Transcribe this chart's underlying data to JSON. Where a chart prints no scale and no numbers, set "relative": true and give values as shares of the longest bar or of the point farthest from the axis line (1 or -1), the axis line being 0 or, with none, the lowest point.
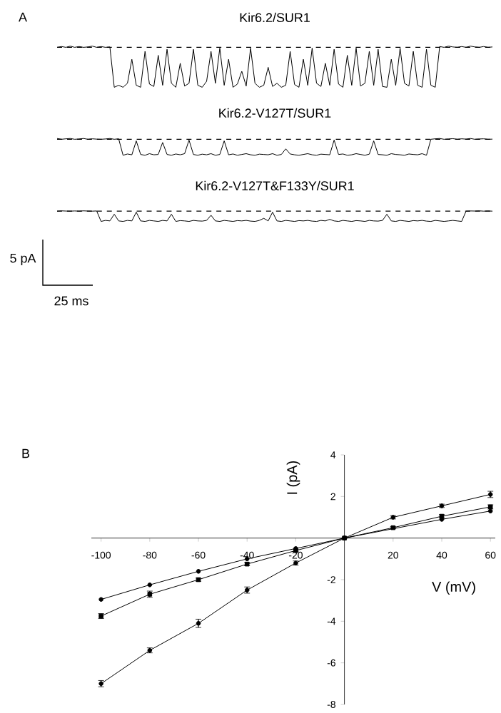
{
  "chart_data": [
    {
      "type": "line",
      "relative": true,
      "title": "Kir6.2/SUR1",
      "annotations": [
        "A"
      ],
      "categories": [
        null,
        null,
        null,
        null,
        null,
        null,
        null,
        null,
        null,
        null,
        null,
        null,
        null,
        null,
        null,
        null,
        null,
        null,
        null,
        null,
        null,
        null,
        null,
        null,
        null,
        null,
        null,
        null,
        null,
        null,
        null,
        null,
        null,
        null,
        null,
        null,
        null,
        null,
        null,
        null,
        null,
        null,
        null,
        null,
        null,
        null,
        null,
        null,
        null,
        null,
        null,
        null,
        null,
        null,
        null,
        null,
        null,
        null,
        null,
        null,
        null,
        null,
        null,
        null,
        null,
        null,
        null,
        null,
        null,
        null,
        null,
        null,
        null,
        null,
        null,
        null,
        null,
        null,
        null,
        null,
        null,
        null,
        null,
        null,
        null,
        null,
        null,
        null,
        null,
        null,
        null,
        null,
        null,
        null,
        null,
        null,
        null,
        null,
        null,
        null
      ],
      "series": [
        {
          "color": "#000000",
          "values": [
            0,
            0.02,
            0,
            0.03,
            0,
            0.02,
            0,
            0.01,
            0.03,
            0,
            0.02,
            0,
            0.01,
            -1,
            -0.95,
            -1,
            -0.9,
            -0.3,
            -0.95,
            -1,
            -0.1,
            -0.92,
            -0.98,
            -0.2,
            -0.95,
            -0.05,
            -0.9,
            -1,
            -0.4,
            -0.97,
            -0.9,
            -0.05,
            -0.95,
            -1,
            -0.85,
            -0.1,
            -0.9,
            -0.02,
            -0.95,
            -0.3,
            -1,
            -0.92,
            -0.6,
            -0.97,
            -0.02,
            -0.9,
            -1,
            -0.95,
            -0.5,
            -0.98,
            -0.9,
            -1,
            -0.95,
            -0.1,
            -0.93,
            -1,
            -0.3,
            -0.95,
            -0.02,
            -0.9,
            -0.98,
            -0.4,
            -0.95,
            -0.05,
            -0.92,
            -1,
            -0.2,
            -0.95,
            -0.02,
            -0.97,
            -0.9,
            -0.1,
            -0.95,
            -0.05,
            -0.98,
            -1,
            -0.3,
            -0.95,
            -0.02,
            -0.9,
            -0.97,
            -0.1,
            -0.95,
            -1,
            -0.05,
            -0.95,
            -1,
            0.02,
            0,
            0.03,
            0.01,
            0,
            0.02,
            0,
            0.03,
            0.01,
            0,
            0.02,
            0,
            0.01
          ]
        }
      ],
      "ref_lines": [
        {
          "axis": "y",
          "value": 0,
          "line_style": "dashed"
        }
      ]
    },
    {
      "type": "line",
      "relative": true,
      "title": "Kir6.2-V127T/SUR1",
      "categories": [
        null,
        null,
        null,
        null,
        null,
        null,
        null,
        null,
        null,
        null,
        null,
        null,
        null,
        null,
        null,
        null,
        null,
        null,
        null,
        null,
        null,
        null,
        null,
        null,
        null,
        null,
        null,
        null,
        null,
        null,
        null,
        null,
        null,
        null,
        null,
        null,
        null,
        null,
        null,
        null,
        null,
        null,
        null,
        null,
        null,
        null,
        null,
        null,
        null,
        null,
        null,
        null,
        null,
        null,
        null,
        null,
        null,
        null,
        null,
        null,
        null,
        null,
        null,
        null,
        null,
        null,
        null,
        null,
        null,
        null,
        null,
        null,
        null,
        null,
        null,
        null,
        null,
        null,
        null,
        null,
        null,
        null,
        null,
        null,
        null,
        null,
        null,
        null,
        null,
        null,
        null,
        null,
        null,
        null,
        null,
        null,
        null,
        null,
        null,
        null
      ],
      "series": [
        {
          "color": "#000000",
          "values": [
            0.05,
            0,
            0.03,
            0.05,
            0,
            0.02,
            0.05,
            0,
            0.03,
            0.01,
            0,
            0.02,
            0.05,
            0,
            0.03,
            -1,
            -0.92,
            -0.97,
            -0.1,
            -0.95,
            -1,
            -0.9,
            -0.97,
            -0.95,
            -0.2,
            -0.95,
            -1,
            -0.92,
            -0.97,
            -0.9,
            -0.05,
            -0.95,
            -1,
            -0.93,
            -0.97,
            -0.9,
            -1,
            -0.95,
            -0.1,
            -0.97,
            -0.92,
            -1,
            -0.95,
            -0.9,
            -0.97,
            -1,
            -0.93,
            -0.95,
            -0.97,
            -0.9,
            -1,
            -0.95,
            -0.6,
            -0.92,
            -0.97,
            -1,
            -0.95,
            -0.9,
            -0.97,
            -1,
            -0.93,
            -0.95,
            -0.97,
            -0.05,
            -0.95,
            -0.92,
            -1,
            -0.97,
            -0.9,
            -0.95,
            -1,
            -0.93,
            -0.1,
            -0.95,
            -0.97,
            -1,
            -0.9,
            -0.95,
            -0.97,
            -1,
            -0.92,
            -0.95,
            -0.97,
            -0.9,
            -1,
            0,
            0.03,
            0.05,
            0,
            0.02,
            0.04,
            0,
            0.03,
            0.01,
            0.05,
            0,
            0.02,
            0.03,
            0,
            0.01
          ]
        }
      ],
      "ref_lines": [
        {
          "axis": "y",
          "value": 0,
          "line_style": "dashed"
        }
      ]
    },
    {
      "type": "line",
      "relative": true,
      "title": "Kir6.2-V127T&F133Y/SUR1",
      "annotations": [
        "5 pA",
        "25 ms"
      ],
      "categories": [
        null,
        null,
        null,
        null,
        null,
        null,
        null,
        null,
        null,
        null,
        null,
        null,
        null,
        null,
        null,
        null,
        null,
        null,
        null,
        null,
        null,
        null,
        null,
        null,
        null,
        null,
        null,
        null,
        null,
        null,
        null,
        null,
        null,
        null,
        null,
        null,
        null,
        null,
        null,
        null,
        null,
        null,
        null,
        null,
        null,
        null,
        null,
        null,
        null,
        null,
        null,
        null,
        null,
        null,
        null,
        null,
        null,
        null,
        null,
        null,
        null,
        null,
        null,
        null,
        null,
        null,
        null,
        null,
        null,
        null,
        null,
        null,
        null,
        null,
        null,
        null,
        null,
        null,
        null,
        null,
        null,
        null,
        null,
        null,
        null,
        null,
        null,
        null,
        null,
        null,
        null,
        null,
        null,
        null,
        null,
        null,
        null,
        null,
        null,
        null
      ],
      "series": [
        {
          "color": "#000000",
          "values": [
            0,
            0.03,
            0.01,
            0,
            0.02,
            0,
            0.03,
            0.01,
            0,
            0.02,
            -1,
            -0.9,
            -0.95,
            -0.3,
            -0.95,
            -1,
            -0.9,
            -0.95,
            -0.1,
            -0.95,
            -1,
            -0.9,
            -0.95,
            -1,
            -0.9,
            -0.95,
            -0.3,
            -1,
            -0.92,
            -0.95,
            -1,
            -0.9,
            -0.95,
            -0.97,
            -0.9,
            -0.4,
            -0.95,
            -1,
            -0.9,
            -0.95,
            -1,
            -0.92,
            -0.95,
            -0.9,
            -0.97,
            -1,
            -0.9,
            -0.7,
            -0.95,
            -0.1,
            -0.95,
            -1,
            -0.9,
            -0.95,
            -1,
            -0.92,
            -0.95,
            -0.9,
            -0.97,
            -1,
            -0.9,
            -0.95,
            -0.8,
            -0.95,
            -1,
            -0.9,
            -0.95,
            -1,
            -0.92,
            -0.95,
            -1,
            -0.9,
            -0.95,
            -0.97,
            -0.9,
            -0.3,
            -0.95,
            -1,
            -0.9,
            -0.95,
            -1,
            -0.92,
            -0.95,
            -0.9,
            -0.97,
            -1,
            -0.9,
            -0.95,
            -1,
            -0.95,
            -0.9,
            -0.95,
            -1,
            0,
            0.02,
            0.01,
            0.03,
            0,
            0.02,
            0
          ]
        }
      ],
      "ref_lines": [
        {
          "axis": "y",
          "value": 0,
          "line_style": "dashed"
        }
      ]
    },
    {
      "type": "line",
      "xlabel": "V (mV)",
      "ylabel": "I (pA)",
      "annotations": [
        "B"
      ],
      "x": [
        -100,
        -80,
        -60,
        -40,
        -20,
        0,
        20,
        40,
        60
      ],
      "xlim": [
        -104,
        62
      ],
      "ylim": [
        -8,
        4
      ],
      "xticks": [
        -100,
        -80,
        -60,
        -40,
        -20,
        20,
        40,
        60
      ],
      "yticks": [
        -8,
        -6,
        -4,
        -2,
        2,
        4
      ],
      "series": [
        {
          "color": "#000000",
          "marker": "circle",
          "values": [
            -2.95,
            -2.25,
            -1.6,
            -1.0,
            -0.5,
            0,
            null,
            0.9,
            1.3
          ]
        },
        {
          "color": "#000000",
          "marker": "square",
          "values": [
            -3.75,
            -2.7,
            -2.0,
            -1.25,
            -0.6,
            0,
            0.5,
            1.05,
            1.5
          ],
          "errors": [
            0.12,
            0.15,
            0.08,
            0.08,
            0.05,
            null,
            0.05,
            0.08,
            0.1
          ]
        },
        {
          "color": "#000000",
          "marker": "circle",
          "values": [
            -7.0,
            -5.4,
            -4.1,
            -2.5,
            -1.2,
            0,
            1.0,
            1.55,
            2.1
          ],
          "errors": [
            0.15,
            0.12,
            0.2,
            0.15,
            0.1,
            null,
            0.08,
            0.08,
            0.15
          ]
        }
      ]
    }
  ]
}
